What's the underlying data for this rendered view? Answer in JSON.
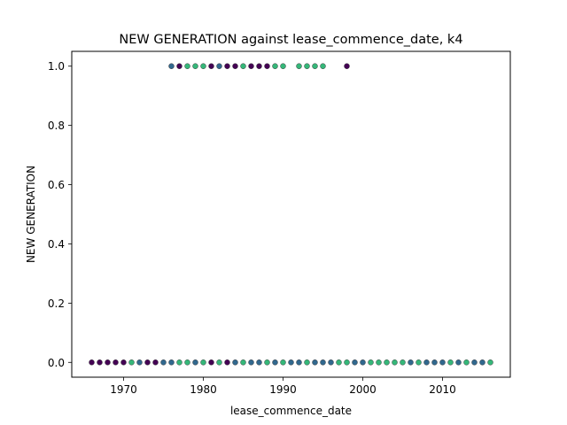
{
  "chart_data": {
    "type": "scatter",
    "title": "NEW GENERATION against lease_commence_date, k4",
    "xlabel": "lease_commence_date",
    "ylabel": "NEW GENERATION",
    "xlim": [
      1963.5,
      2018.5
    ],
    "ylim": [
      -0.05,
      1.05
    ],
    "xticks": [
      1970,
      1980,
      1990,
      2000,
      2010
    ],
    "xtick_labels": [
      "1970",
      "1980",
      "1990",
      "2000",
      "2010"
    ],
    "yticks": [
      0.0,
      0.2,
      0.4,
      0.6,
      0.8,
      1.0
    ],
    "ytick_labels": [
      "0.0",
      "0.2",
      "0.4",
      "0.6",
      "0.8",
      "1.0"
    ],
    "grid": false,
    "marker_edge_color": "#3a3a3a",
    "points": [
      {
        "x": 1966,
        "y": 0,
        "color": "#440154"
      },
      {
        "x": 1967,
        "y": 0,
        "color": "#440154"
      },
      {
        "x": 1968,
        "y": 0,
        "color": "#440154"
      },
      {
        "x": 1969,
        "y": 0,
        "color": "#440154"
      },
      {
        "x": 1970,
        "y": 0,
        "color": "#440154"
      },
      {
        "x": 1971,
        "y": 0,
        "color": "#35b779"
      },
      {
        "x": 1972,
        "y": 0,
        "color": "#31688e"
      },
      {
        "x": 1973,
        "y": 0,
        "color": "#440154"
      },
      {
        "x": 1974,
        "y": 0,
        "color": "#440154"
      },
      {
        "x": 1975,
        "y": 0,
        "color": "#31688e"
      },
      {
        "x": 1976,
        "y": 0,
        "color": "#31688e"
      },
      {
        "x": 1977,
        "y": 0,
        "color": "#35b779"
      },
      {
        "x": 1978,
        "y": 0,
        "color": "#35b779"
      },
      {
        "x": 1979,
        "y": 0,
        "color": "#31688e"
      },
      {
        "x": 1980,
        "y": 0,
        "color": "#35b779"
      },
      {
        "x": 1981,
        "y": 0,
        "color": "#440154"
      },
      {
        "x": 1982,
        "y": 0,
        "color": "#35b779"
      },
      {
        "x": 1983,
        "y": 0,
        "color": "#440154"
      },
      {
        "x": 1984,
        "y": 0,
        "color": "#31688e"
      },
      {
        "x": 1985,
        "y": 0,
        "color": "#35b779"
      },
      {
        "x": 1986,
        "y": 0,
        "color": "#31688e"
      },
      {
        "x": 1987,
        "y": 0,
        "color": "#31688e"
      },
      {
        "x": 1988,
        "y": 0,
        "color": "#35b779"
      },
      {
        "x": 1989,
        "y": 0,
        "color": "#31688e"
      },
      {
        "x": 1990,
        "y": 0,
        "color": "#35b779"
      },
      {
        "x": 1991,
        "y": 0,
        "color": "#31688e"
      },
      {
        "x": 1992,
        "y": 0,
        "color": "#31688e"
      },
      {
        "x": 1993,
        "y": 0,
        "color": "#35b779"
      },
      {
        "x": 1994,
        "y": 0,
        "color": "#31688e"
      },
      {
        "x": 1995,
        "y": 0,
        "color": "#31688e"
      },
      {
        "x": 1996,
        "y": 0,
        "color": "#31688e"
      },
      {
        "x": 1997,
        "y": 0,
        "color": "#35b779"
      },
      {
        "x": 1998,
        "y": 0,
        "color": "#35b779"
      },
      {
        "x": 1999,
        "y": 0,
        "color": "#31688e"
      },
      {
        "x": 2000,
        "y": 0,
        "color": "#31688e"
      },
      {
        "x": 2001,
        "y": 0,
        "color": "#35b779"
      },
      {
        "x": 2002,
        "y": 0,
        "color": "#35b779"
      },
      {
        "x": 2003,
        "y": 0,
        "color": "#35b779"
      },
      {
        "x": 2004,
        "y": 0,
        "color": "#35b779"
      },
      {
        "x": 2005,
        "y": 0,
        "color": "#35b779"
      },
      {
        "x": 2006,
        "y": 0,
        "color": "#31688e"
      },
      {
        "x": 2007,
        "y": 0,
        "color": "#35b779"
      },
      {
        "x": 2008,
        "y": 0,
        "color": "#31688e"
      },
      {
        "x": 2009,
        "y": 0,
        "color": "#31688e"
      },
      {
        "x": 2010,
        "y": 0,
        "color": "#31688e"
      },
      {
        "x": 2011,
        "y": 0,
        "color": "#35b779"
      },
      {
        "x": 2012,
        "y": 0,
        "color": "#31688e"
      },
      {
        "x": 2013,
        "y": 0,
        "color": "#35b779"
      },
      {
        "x": 2014,
        "y": 0,
        "color": "#31688e"
      },
      {
        "x": 2015,
        "y": 0,
        "color": "#31688e"
      },
      {
        "x": 2016,
        "y": 0,
        "color": "#35b779"
      },
      {
        "x": 1976,
        "y": 1,
        "color": "#31688e"
      },
      {
        "x": 1977,
        "y": 1,
        "color": "#440154"
      },
      {
        "x": 1978,
        "y": 1,
        "color": "#35b779"
      },
      {
        "x": 1979,
        "y": 1,
        "color": "#35b779"
      },
      {
        "x": 1980,
        "y": 1,
        "color": "#35b779"
      },
      {
        "x": 1981,
        "y": 1,
        "color": "#440154"
      },
      {
        "x": 1982,
        "y": 1,
        "color": "#31688e"
      },
      {
        "x": 1983,
        "y": 1,
        "color": "#440154"
      },
      {
        "x": 1984,
        "y": 1,
        "color": "#440154"
      },
      {
        "x": 1985,
        "y": 1,
        "color": "#35b779"
      },
      {
        "x": 1986,
        "y": 1,
        "color": "#440154"
      },
      {
        "x": 1987,
        "y": 1,
        "color": "#440154"
      },
      {
        "x": 1988,
        "y": 1,
        "color": "#440154"
      },
      {
        "x": 1989,
        "y": 1,
        "color": "#35b779"
      },
      {
        "x": 1990,
        "y": 1,
        "color": "#35b779"
      },
      {
        "x": 1992,
        "y": 1,
        "color": "#35b779"
      },
      {
        "x": 1993,
        "y": 1,
        "color": "#35b779"
      },
      {
        "x": 1994,
        "y": 1,
        "color": "#35b779"
      },
      {
        "x": 1995,
        "y": 1,
        "color": "#35b779"
      },
      {
        "x": 1998,
        "y": 1,
        "color": "#440154"
      }
    ]
  }
}
